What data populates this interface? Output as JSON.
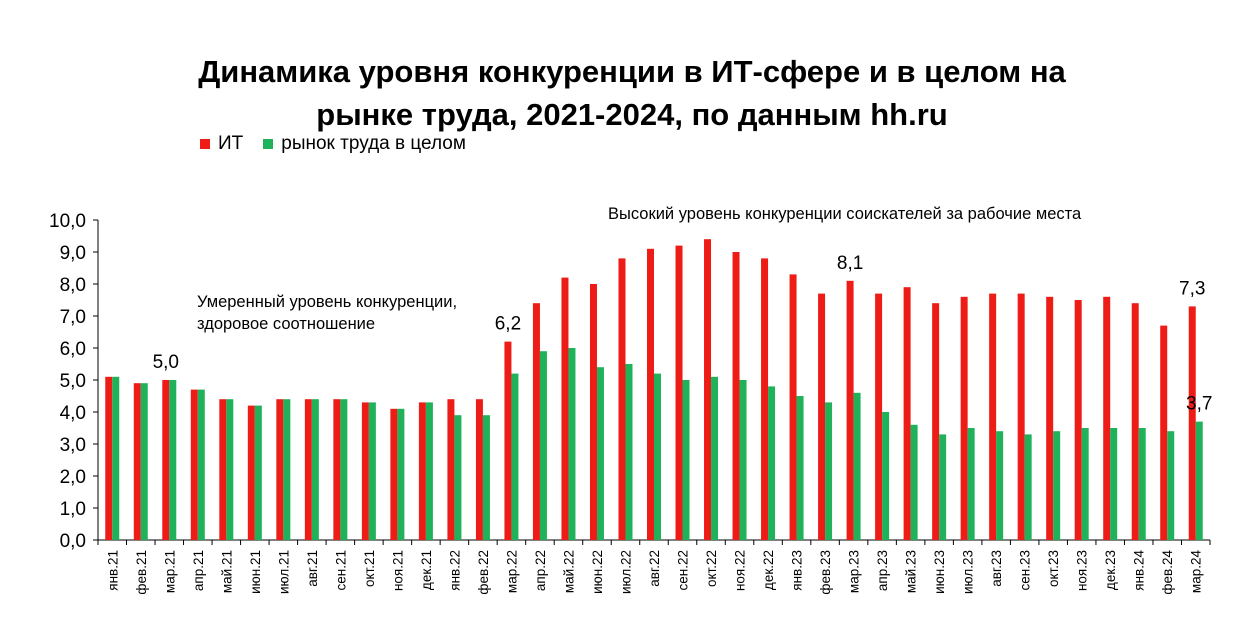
{
  "title_line1": "Динамика уровня конкуренции в ИТ-сфере и в целом на",
  "title_line2": "рынке труда, 2021-2024, по данным hh.ru",
  "annotations": {
    "moderate_line1": "Умеренный уровень конкуренции,",
    "moderate_line2": "здоровое соотношение",
    "high": "Высокий уровень конкуренции соискателей за рабочие места"
  },
  "colors": {
    "it": "#ee1c16",
    "market": "#1fb25a"
  },
  "chart_data": {
    "type": "bar",
    "title": "Динамика уровня конкуренции в ИТ-сфере и в целом на рынке труда, 2021-2024, по данным hh.ru",
    "xlabel": "",
    "ylabel": "",
    "ylim": [
      0,
      10
    ],
    "yticks": [
      "0,0",
      "1,0",
      "2,0",
      "3,0",
      "4,0",
      "5,0",
      "6,0",
      "7,0",
      "8,0",
      "9,0",
      "10,0"
    ],
    "grid": false,
    "legend_position": "top-left",
    "categories": [
      "янв.21",
      "фев.21",
      "мар.21",
      "апр.21",
      "май.21",
      "июн.21",
      "июл.21",
      "авг.21",
      "сен.21",
      "окт.21",
      "ноя.21",
      "дек.21",
      "янв.22",
      "фев.22",
      "мар.22",
      "апр.22",
      "май.22",
      "июн.22",
      "июл.22",
      "авг.22",
      "сен.22",
      "окт.22",
      "ноя.22",
      "дек.22",
      "янв.23",
      "фев.23",
      "мар.23",
      "апр.23",
      "май.23",
      "июн.23",
      "июл.23",
      "авг.23",
      "сен.23",
      "окт.23",
      "ноя.23",
      "дек.23",
      "янв.24",
      "фев.24",
      "мар.24"
    ],
    "series": [
      {
        "name": "ИТ",
        "values": [
          5.1,
          4.9,
          5.0,
          4.7,
          4.4,
          4.2,
          4.4,
          4.4,
          4.4,
          4.3,
          4.1,
          4.3,
          4.4,
          4.4,
          6.2,
          7.4,
          8.2,
          8.0,
          8.8,
          9.1,
          9.2,
          9.4,
          9.0,
          8.8,
          8.3,
          7.7,
          8.1,
          7.7,
          7.9,
          7.4,
          7.6,
          7.7,
          7.7,
          7.6,
          7.5,
          7.6,
          7.4,
          6.7,
          7.3
        ]
      },
      {
        "name": "рынок труда в целом",
        "values": [
          5.1,
          4.9,
          5.0,
          4.7,
          4.4,
          4.2,
          4.4,
          4.4,
          4.4,
          4.3,
          4.1,
          4.3,
          3.9,
          3.9,
          5.2,
          5.9,
          6.0,
          5.4,
          5.5,
          5.2,
          5.0,
          5.1,
          5.0,
          4.8,
          4.5,
          4.3,
          4.6,
          4.0,
          3.6,
          3.3,
          3.5,
          3.4,
          3.3,
          3.4,
          3.5,
          3.5,
          3.5,
          3.4,
          3.7
        ]
      }
    ],
    "data_labels": [
      {
        "category": "мар.21",
        "series": "ИТ",
        "text": "5,0"
      },
      {
        "category": "мар.22",
        "series": "ИТ",
        "text": "6,2"
      },
      {
        "category": "мар.23",
        "series": "ИТ",
        "text": "8,1"
      },
      {
        "category": "мар.24",
        "series": "ИТ",
        "text": "7,3"
      },
      {
        "category": "мар.24",
        "series": "рынок труда в целом",
        "text": "3,7"
      }
    ]
  }
}
